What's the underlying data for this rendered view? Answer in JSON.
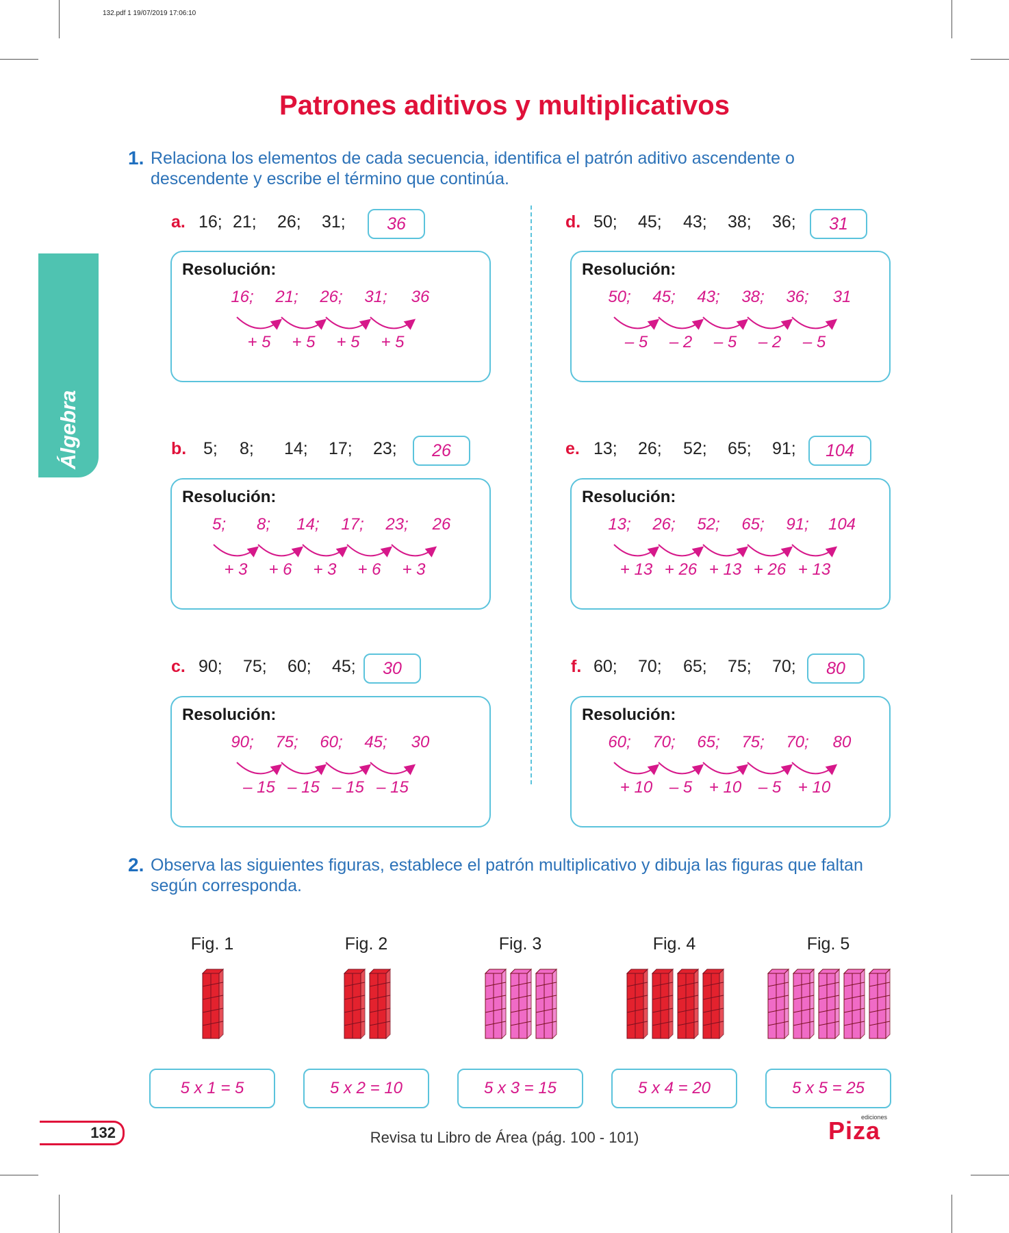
{
  "print_info": "132.pdf  1  19/07/2019  17:06:10",
  "title": "Patrones aditivos y multiplicativos",
  "side_tab": "Álgebra",
  "q1": {
    "number": "1.",
    "text": "Relaciona los elementos de cada secuencia, identifica el patrón aditivo ascendente o descendente y escribe el término que continúa.",
    "resolution_label": "Resolución:",
    "items": [
      {
        "letter": "a.",
        "sequence": [
          "16;",
          "21;",
          "26;",
          "31;"
        ],
        "answer": "36",
        "terms": [
          "16;",
          "21;",
          "26;",
          "31;",
          "36"
        ],
        "steps": [
          "+ 5",
          "+ 5",
          "+ 5",
          "+ 5"
        ]
      },
      {
        "letter": "b.",
        "sequence": [
          "5;",
          "8;",
          "14;",
          "17;",
          "23;"
        ],
        "answer": "26",
        "terms": [
          "5;",
          "8;",
          "14;",
          "17;",
          "23;",
          "26"
        ],
        "steps": [
          "+ 3",
          "+ 6",
          "+ 3",
          "+ 6",
          "+ 3"
        ]
      },
      {
        "letter": "c.",
        "sequence": [
          "90;",
          "75;",
          "60;",
          "45;"
        ],
        "answer": "30",
        "terms": [
          "90;",
          "75;",
          "60;",
          "45;",
          "30"
        ],
        "steps": [
          "– 15",
          "– 15",
          "– 15",
          "– 15"
        ]
      },
      {
        "letter": "d.",
        "sequence": [
          "50;",
          "45;",
          "43;",
          "38;",
          "36;"
        ],
        "answer": "31",
        "terms": [
          "50;",
          "45;",
          "43;",
          "38;",
          "36;",
          "31"
        ],
        "steps": [
          "– 5",
          "– 2",
          "– 5",
          "– 2",
          "– 5"
        ]
      },
      {
        "letter": "e.",
        "sequence": [
          "13;",
          "26;",
          "52;",
          "65;",
          "91;"
        ],
        "answer": "104",
        "terms": [
          "13;",
          "26;",
          "52;",
          "65;",
          "91;",
          "104"
        ],
        "steps": [
          "+ 13",
          "+ 26",
          "+ 13",
          "+ 26",
          "+ 13"
        ]
      },
      {
        "letter": "f.",
        "sequence": [
          "60;",
          "70;",
          "65;",
          "75;",
          "70;"
        ],
        "answer": "80",
        "terms": [
          "60;",
          "70;",
          "65;",
          "75;",
          "70;",
          "80"
        ],
        "steps": [
          "+ 10",
          "– 5",
          "+ 10",
          "– 5",
          "+ 10"
        ]
      }
    ]
  },
  "q2": {
    "number": "2.",
    "text": "Observa las siguientes figuras, establece el patrón multiplicativo y dibuja las figuras que faltan según corresponda.",
    "figures": [
      {
        "label": "Fig. 1",
        "columns": 1,
        "color": "#e3222e",
        "answer": "5 x 1 = 5"
      },
      {
        "label": "Fig. 2",
        "columns": 2,
        "color": "#e3222e",
        "answer": "5 x 2 = 10"
      },
      {
        "label": "Fig. 3",
        "columns": 3,
        "color": "#f06bc6",
        "answer": "5 x 3 = 15"
      },
      {
        "label": "Fig. 4",
        "columns": 4,
        "color": "#e3222e",
        "answer": "5 x 4 = 20"
      },
      {
        "label": "Fig. 5",
        "columns": 5,
        "color": "#f06bc6",
        "answer": "5 x 5 = 25"
      }
    ]
  },
  "footer": {
    "page_number": "132",
    "text": "Revisa tu Libro de Área (pág. 100 - 101)",
    "logo": "Piza",
    "logo_small": "ediciones"
  }
}
